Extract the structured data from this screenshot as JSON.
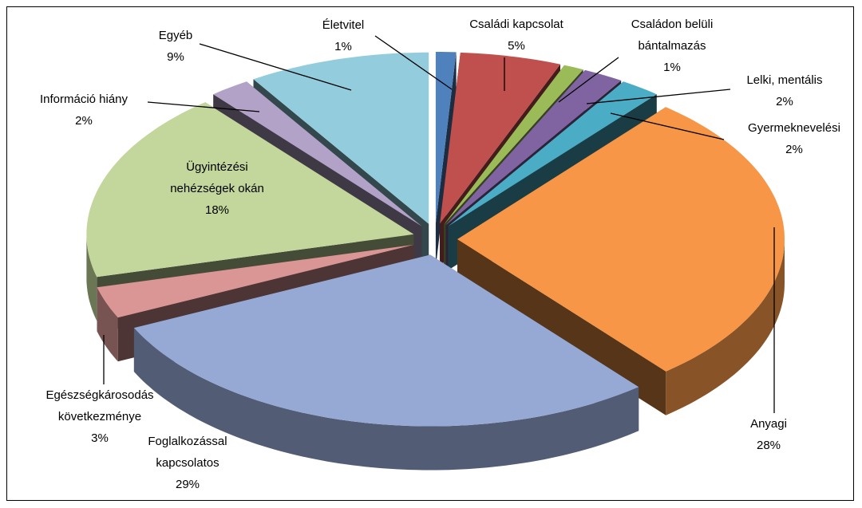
{
  "chart_data": {
    "type": "pie",
    "categories": [
      "Életvitel",
      "Családi kapcsolat",
      "Családon belüli bántalmazás",
      "Lelki, mentális",
      "Gyermeknevelési",
      "Anyagi",
      "Foglalkozással kapcsolatos",
      "Egészségkárosodás következménye",
      "Ügyintézési nehézségek okán",
      "Információ hiány",
      "Egyéb"
    ],
    "values": [
      1,
      5,
      1,
      2,
      2,
      28,
      29,
      3,
      18,
      2,
      9
    ],
    "value_labels": [
      "1%",
      "5%",
      "1%",
      "2%",
      "2%",
      "28%",
      "29%",
      "3%",
      "18%",
      "2%",
      "9%"
    ],
    "colors": [
      "#4f81bd",
      "#c0504d",
      "#9bbb59",
      "#8064a2",
      "#4bacc6",
      "#f79646",
      "#95a9d4",
      "#d99694",
      "#c3d69b",
      "#b3a2c7",
      "#93cddd"
    ]
  }
}
